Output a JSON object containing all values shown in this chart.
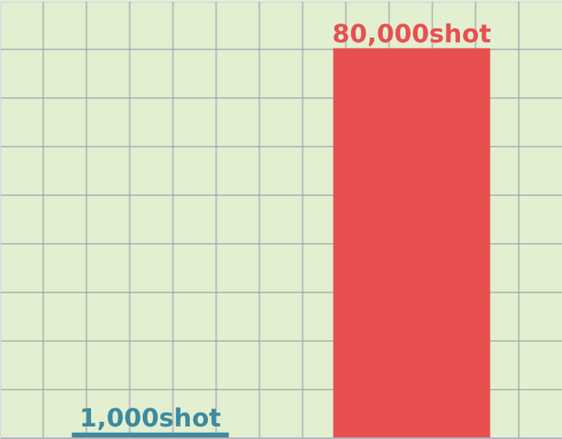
{
  "chart_data": {
    "type": "bar",
    "categories": [
      null,
      null
    ],
    "values": [
      1000,
      80000
    ],
    "colors": [
      "#3d8a9e",
      "#e85050"
    ],
    "value_labels": [
      "1,000shot",
      "80,000shot"
    ],
    "grid": true
  }
}
